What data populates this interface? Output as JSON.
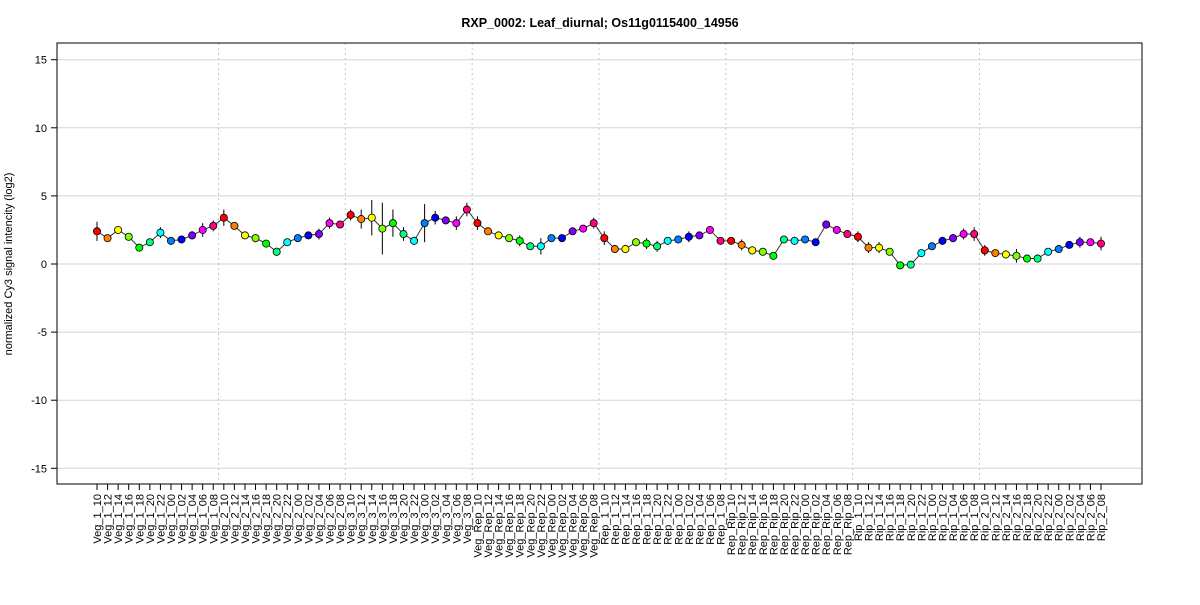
{
  "chart_data": {
    "type": "line",
    "title": "RXP_0002: Leaf_diurnal; Os11g0115400_14956",
    "xlabel": "",
    "ylabel": "normalized Cy3 signal intencity (log2)",
    "ylim": [
      -16,
      16
    ],
    "yticks": [
      -15,
      -10,
      -5,
      0,
      5,
      10,
      15
    ],
    "grid": true,
    "groups": [
      "Veg_1",
      "Veg_2",
      "Veg_3",
      "Veg_Rep",
      "Rep_1",
      "Rep_Rip",
      "Rip_1",
      "Rip_2"
    ],
    "times": [
      "10",
      "12",
      "14",
      "16",
      "18",
      "20",
      "22",
      "00",
      "02",
      "04",
      "06",
      "08"
    ],
    "point_colors": [
      "#ff0000",
      "#ff8000",
      "#ffff00",
      "#80ff00",
      "#00ff00",
      "#00ff80",
      "#00ffff",
      "#0080ff",
      "#0000ff",
      "#8000ff",
      "#ff00ff",
      "#ff0080"
    ],
    "values": [
      2.4,
      1.9,
      2.5,
      2.0,
      1.2,
      1.6,
      2.3,
      1.7,
      1.8,
      2.1,
      2.5,
      2.8,
      3.4,
      2.8,
      2.1,
      1.9,
      1.5,
      0.9,
      1.6,
      1.9,
      2.1,
      2.2,
      3.0,
      2.9,
      3.6,
      3.3,
      3.4,
      2.6,
      3.0,
      2.2,
      1.7,
      3.0,
      3.4,
      3.2,
      3.0,
      4.0,
      3.0,
      2.4,
      2.1,
      1.9,
      1.7,
      1.3,
      1.3,
      1.9,
      1.9,
      2.4,
      2.6,
      3.0,
      1.9,
      1.1,
      1.1,
      1.6,
      1.5,
      1.3,
      1.7,
      1.8,
      2.0,
      2.1,
      2.5,
      1.7,
      1.7,
      1.4,
      1.0,
      0.9,
      0.6,
      1.8,
      1.7,
      1.8,
      1.6,
      2.9,
      2.5,
      2.2,
      2.0,
      1.2,
      1.2,
      0.9,
      -0.1,
      -0.05,
      0.8,
      1.3,
      1.7,
      1.9,
      2.2,
      2.2,
      1.0,
      0.8,
      0.7,
      0.6,
      0.4,
      0.4,
      0.9,
      1.1,
      1.4,
      1.6,
      1.6,
      1.5
    ],
    "errors": [
      0.7,
      0.2,
      0.2,
      0.2,
      0.1,
      0.2,
      0.4,
      0.3,
      0.2,
      0.3,
      0.5,
      0.4,
      0.6,
      0.2,
      0.2,
      0.3,
      0.2,
      0.3,
      0.2,
      0.2,
      0.2,
      0.4,
      0.4,
      0.2,
      0.4,
      0.7,
      1.3,
      1.9,
      1.0,
      0.5,
      0.3,
      1.4,
      0.5,
      0.2,
      0.5,
      0.5,
      0.5,
      0.2,
      0.2,
      0.2,
      0.4,
      0.2,
      0.6,
      0.2,
      0.2,
      0.2,
      0.2,
      0.4,
      0.5,
      0.3,
      0.3,
      0.2,
      0.4,
      0.4,
      0.2,
      0.2,
      0.4,
      0.2,
      0.2,
      0.2,
      0.2,
      0.4,
      0.3,
      0.2,
      0.2,
      0.2,
      0.3,
      0.2,
      0.2,
      0.3,
      0.2,
      0.2,
      0.4,
      0.4,
      0.4,
      0.2,
      0.2,
      0.2,
      0.2,
      0.2,
      0.3,
      0.3,
      0.4,
      0.5,
      0.4,
      0.2,
      0.3,
      0.5,
      0.2,
      0.2,
      0.2,
      0.2,
      0.2,
      0.4,
      0.2,
      0.5
    ]
  }
}
